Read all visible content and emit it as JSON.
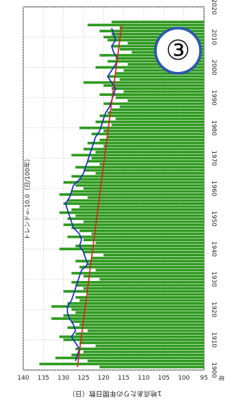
{
  "badge": "③",
  "chart_data": {
    "type": "bar",
    "title": "",
    "xlabel": "年",
    "ylabel": "1地点あたりの年間日数（日）",
    "xlim": [
      1900,
      2020
    ],
    "ylim": [
      95,
      140
    ],
    "x_ticks": [
      "1900",
      "1910",
      "1920",
      "1930",
      "1940",
      "1950",
      "1960",
      "1970",
      "1980",
      "1990",
      "2000",
      "2010",
      "2020"
    ],
    "y_ticks": [
      "95",
      "100",
      "105",
      "110",
      "115",
      "120",
      "125",
      "130",
      "135",
      "140"
    ],
    "trend_label": "トレンド=-10.0（日/100年）",
    "grid": true,
    "colors": {
      "bar": "#2e9a1f",
      "moving_average": "#1530c8",
      "trend": "#d42a1a"
    },
    "series": [
      {
        "kind": "bar",
        "x": [
          1901,
          1902,
          1903,
          1904,
          1905,
          1906,
          1907,
          1908,
          1909,
          1910,
          1911,
          1912,
          1913,
          1914,
          1915,
          1916,
          1917,
          1918,
          1919,
          1920,
          1921,
          1922,
          1923,
          1924,
          1925,
          1926,
          1927,
          1928,
          1929,
          1930,
          1931,
          1932,
          1933,
          1934,
          1935,
          1936,
          1937,
          1938,
          1939,
          1940,
          1941,
          1942,
          1943,
          1944,
          1945,
          1946,
          1947,
          1948,
          1949,
          1950,
          1951,
          1952,
          1953,
          1954,
          1955,
          1956,
          1957,
          1958,
          1959,
          1960,
          1961,
          1962,
          1963,
          1964,
          1965,
          1966,
          1967,
          1968,
          1969,
          1970,
          1971,
          1972,
          1973,
          1974,
          1975,
          1976,
          1977,
          1978,
          1979,
          1980,
          1981,
          1982,
          1983,
          1984,
          1985,
          1986,
          1987,
          1988,
          1989,
          1990,
          1991,
          1992,
          1993,
          1994,
          1995,
          1996,
          1997,
          1998,
          1999,
          2000,
          2001,
          2002,
          2003,
          2004,
          2005,
          2006,
          2007,
          2008,
          2009,
          2010,
          2011,
          2012,
          2013,
          2014,
          2015
        ],
        "values": [
          121,
          136,
          124,
          132,
          128,
          125,
          127,
          122,
          126,
          130,
          131,
          127,
          124,
          129,
          126,
          128,
          133,
          130,
          127,
          128,
          133,
          129,
          126,
          127,
          124,
          130,
          125,
          127,
          128,
          121,
          125,
          128,
          122,
          126,
          124,
          127,
          123,
          120,
          125,
          131,
          127,
          122,
          125,
          129,
          123,
          126,
          128,
          130,
          125,
          129,
          127,
          131,
          128,
          126,
          130,
          129,
          124,
          131,
          128,
          125,
          127,
          130,
          126,
          128,
          122,
          125,
          127,
          121,
          124,
          123,
          128,
          122,
          125,
          120,
          124,
          121,
          119,
          123,
          120,
          126,
          118,
          122,
          117,
          121,
          119,
          118,
          116,
          120,
          114,
          117,
          121,
          115,
          118,
          120,
          125,
          116,
          119,
          117,
          115,
          122,
          114,
          119,
          117,
          121,
          113,
          116,
          118,
          114,
          119,
          120,
          118,
          121,
          116,
          124,
          118
        ]
      },
      {
        "kind": "line",
        "name_hidden": "moving-average",
        "x": [
          1903,
          1905,
          1907,
          1909,
          1911,
          1913,
          1915,
          1917,
          1919,
          1921,
          1923,
          1925,
          1927,
          1929,
          1931,
          1933,
          1935,
          1937,
          1939,
          1941,
          1943,
          1945,
          1947,
          1949,
          1951,
          1953,
          1955,
          1957,
          1959,
          1961,
          1963,
          1965,
          1967,
          1969,
          1971,
          1973,
          1975,
          1977,
          1979,
          1981,
          1983,
          1985,
          1987,
          1989,
          1991,
          1993,
          1995,
          1997,
          1999,
          2001,
          2003,
          2005,
          2007,
          2009,
          2011,
          2013
        ],
        "values": [
          127,
          126.5,
          126,
          127,
          128,
          127,
          127.5,
          128.5,
          129,
          129,
          128,
          127.5,
          127,
          126.5,
          126,
          125.5,
          124,
          124.5,
          125,
          126,
          125.5,
          126,
          127.5,
          128,
          128.5,
          129,
          129.5,
          128.5,
          128,
          127.5,
          126,
          125,
          124.5,
          124,
          123.5,
          123,
          122.5,
          122,
          121,
          120.5,
          120,
          119.5,
          118.5,
          118,
          117.5,
          117,
          118,
          119,
          118,
          117,
          116.5,
          117.5,
          118,
          117,
          117.5,
          118
        ]
      },
      {
        "kind": "line",
        "name_hidden": "trend",
        "x": [
          1901,
          2014
        ],
        "values": [
          126.5,
          115.5
        ]
      }
    ]
  }
}
